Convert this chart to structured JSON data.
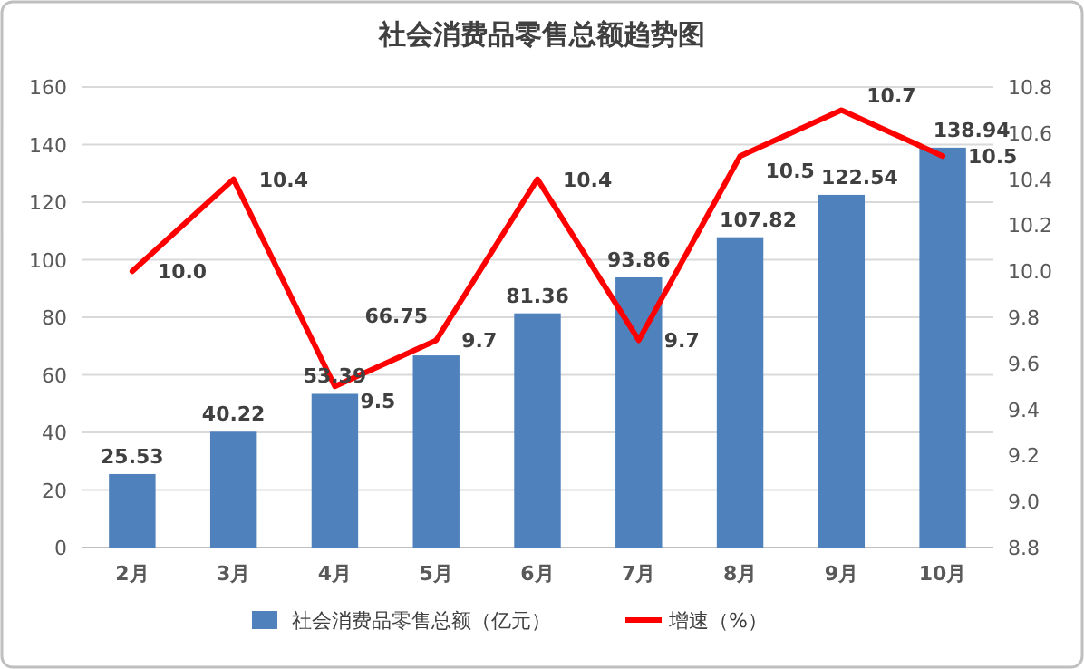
{
  "chart_data": {
    "type": "bar",
    "title": "社会消费品零售总额趋势图",
    "categories": [
      "2月",
      "3月",
      "4月",
      "5月",
      "6月",
      "7月",
      "8月",
      "9月",
      "10月"
    ],
    "series": [
      {
        "name": "社会消费品零售总额（亿元）",
        "color": "#4f81bd",
        "values": [
          25.53,
          40.22,
          53.39,
          66.75,
          81.36,
          93.86,
          107.82,
          122.54,
          138.94
        ],
        "value_labels": [
          "25.53",
          "40.22",
          "53.39",
          "66.75",
          "81.36",
          "93.86",
          "107.82",
          "122.54",
          "138.94"
        ]
      },
      {
        "name": "增速（%）",
        "type": "line",
        "axis": "y2",
        "color": "#ff0000",
        "values": [
          10.0,
          10.4,
          9.5,
          9.7,
          10.4,
          9.7,
          10.5,
          10.7,
          10.5
        ],
        "value_labels": [
          "10.0",
          "10.4",
          "9.5",
          "9.7",
          "10.4",
          "9.7",
          "10.5",
          "10.7",
          "10.5"
        ]
      }
    ],
    "ylim": [
      0,
      160
    ],
    "yticks": [
      0,
      20,
      40,
      60,
      80,
      100,
      120,
      140,
      160
    ],
    "y2lim": [
      8.8,
      10.8
    ],
    "y2ticks": [
      8.8,
      {
        "value": 9,
        "label": "9.0"
      },
      9.2,
      9.4,
      9.6,
      9.8,
      {
        "value": 10,
        "label": "10.0"
      },
      10.2,
      10.4,
      10.6,
      10.8
    ],
    "grid": "y",
    "legend": "bottom",
    "marker": "none",
    "line_style": "solid"
  }
}
